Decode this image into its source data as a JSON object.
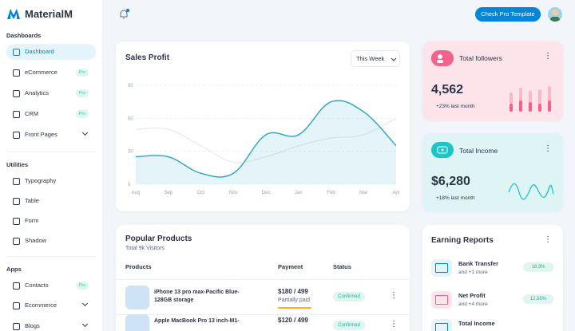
{
  "sidebar": {
    "brand": "MaterialM",
    "sections": [
      {
        "title": "Dashboards",
        "items": [
          {
            "label": "Dashboard",
            "active": true
          },
          {
            "label": "eCommerce",
            "badge": "Pro"
          },
          {
            "label": "Analytics",
            "badge": "Pro"
          },
          {
            "label": "CRM",
            "badge": "Pro"
          },
          {
            "label": "Front Pages",
            "expandable": true
          }
        ]
      },
      {
        "title": "Utilities",
        "items": [
          {
            "label": "Typography"
          },
          {
            "label": "Table"
          },
          {
            "label": "Form"
          },
          {
            "label": "Shadow"
          }
        ]
      },
      {
        "title": "Apps",
        "items": [
          {
            "label": "Contacts",
            "badge": "Pro"
          },
          {
            "label": "Ecommerce",
            "expandable": true
          },
          {
            "label": "Blogs",
            "expandable": true
          }
        ]
      }
    ]
  },
  "topbar": {
    "button": "Check Pro Template"
  },
  "chart_data": {
    "type": "line",
    "title": "Sales Profit",
    "filter": "This Week",
    "categories": [
      "Aug",
      "Sep",
      "Oct",
      "Nov",
      "Dec",
      "Jan",
      "Feb",
      "Mar",
      "Apr"
    ],
    "series": [
      {
        "color": "#2aa3cc",
        "area": true,
        "values": [
          25,
          25,
          10,
          10,
          45,
          45,
          75,
          66,
          35
        ]
      },
      {
        "color": "#e3e6ea",
        "area": false,
        "values": [
          50,
          50,
          35,
          20,
          25,
          35,
          42,
          45,
          60
        ]
      }
    ],
    "ylim": [
      0,
      90
    ],
    "yticks": [
      0,
      30,
      60,
      90
    ],
    "grid": true
  },
  "stats": [
    {
      "title": "Total followers",
      "value": "4,562",
      "change": "+23% last month"
    },
    {
      "title": "Total Income",
      "value": "$6,280",
      "change": "+18% last month"
    }
  ],
  "products": {
    "title": "Popular Products",
    "subtitle": "Total 9k Visitors",
    "columns": [
      "Products",
      "Payment",
      "Status"
    ],
    "rows": [
      {
        "name_lines": [
          "iPhone 13 pro max-Pacific Blue-",
          "128GB storage"
        ],
        "payment": "$180 / 499",
        "payment_status": "Partially paid",
        "status": "Confirmed"
      },
      {
        "name_lines": [
          "Apple MacBook Pro 13 inch-M1-"
        ],
        "payment": "$120 / 499",
        "status": "Confirmed"
      }
    ]
  },
  "earnings": {
    "title": "Earning Reports",
    "items": [
      {
        "label": "Bank Transfer",
        "sub": "and +1 more",
        "badge": "18.3%"
      },
      {
        "label": "Net Profit",
        "sub": "and +4 more",
        "badge": "12.55%"
      },
      {
        "label": "Total Income"
      }
    ]
  }
}
